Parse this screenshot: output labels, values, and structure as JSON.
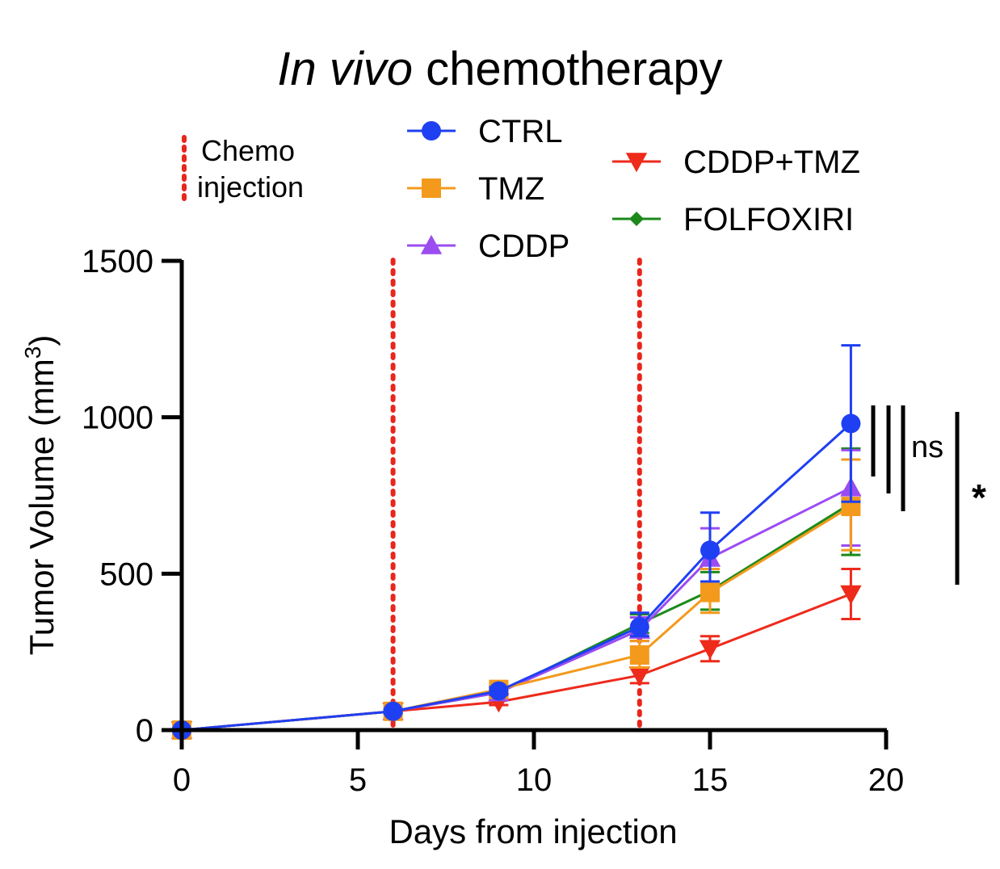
{
  "chart_data": {
    "type": "line",
    "title_italic": "In vivo",
    "title_rest": "chemotherapy",
    "xlabel": "Days from injection",
    "ylabel_prefix": "Tumor Volume (mm",
    "ylabel_sup": "3",
    "ylabel_suffix": ")",
    "xlim": [
      0,
      20
    ],
    "ylim": [
      0,
      1500
    ],
    "x_ticks": [
      0,
      5,
      10,
      15,
      20
    ],
    "y_ticks": [
      0,
      500,
      1000,
      1500
    ],
    "grid": false,
    "legend_position": "top",
    "chemo_injection": {
      "label_line1": "Chemo",
      "label_line2": "injection",
      "days": [
        6,
        13
      ],
      "color": "#e8261c"
    },
    "x": [
      0,
      6,
      9,
      13,
      15,
      19
    ],
    "series": [
      {
        "name": "CTRL",
        "color": "#1f3ff2",
        "marker": "circle",
        "values": [
          0,
          60,
          125,
          330,
          575,
          980
        ],
        "err_upper": [
          0,
          6,
          12,
          45,
          120,
          250
        ],
        "err_lower": [
          0,
          6,
          12,
          30,
          100,
          250
        ]
      },
      {
        "name": "TMZ",
        "color": "#f39a1d",
        "marker": "square",
        "values": [
          0,
          60,
          130,
          240,
          440,
          715
        ],
        "err_upper": [
          0,
          6,
          12,
          45,
          75,
          150
        ],
        "err_lower": [
          0,
          6,
          12,
          40,
          65,
          140
        ]
      },
      {
        "name": "CDDP",
        "color": "#9b4cf0",
        "marker": "triangle-up",
        "values": [
          0,
          60,
          120,
          320,
          550,
          775
        ],
        "err_upper": [
          0,
          6,
          12,
          40,
          95,
          120
        ],
        "err_lower": [
          0,
          6,
          12,
          35,
          90,
          185
        ]
      },
      {
        "name": "CDDP+TMZ",
        "color": "#ee2a1b",
        "marker": "triangle-down",
        "values": [
          0,
          60,
          90,
          175,
          260,
          435
        ],
        "err_upper": [
          0,
          6,
          10,
          25,
          40,
          80
        ],
        "err_lower": [
          0,
          6,
          10,
          25,
          40,
          80
        ]
      },
      {
        "name": "FOLFOXIRI",
        "color": "#1b8a1b",
        "marker": "diamond",
        "values": [
          0,
          60,
          120,
          340,
          445,
          725
        ],
        "err_upper": [
          0,
          6,
          12,
          30,
          60,
          175
        ],
        "err_lower": [
          0,
          6,
          12,
          30,
          60,
          165
        ]
      }
    ],
    "significance": {
      "ns_label": "ns",
      "star_label": "*"
    }
  }
}
